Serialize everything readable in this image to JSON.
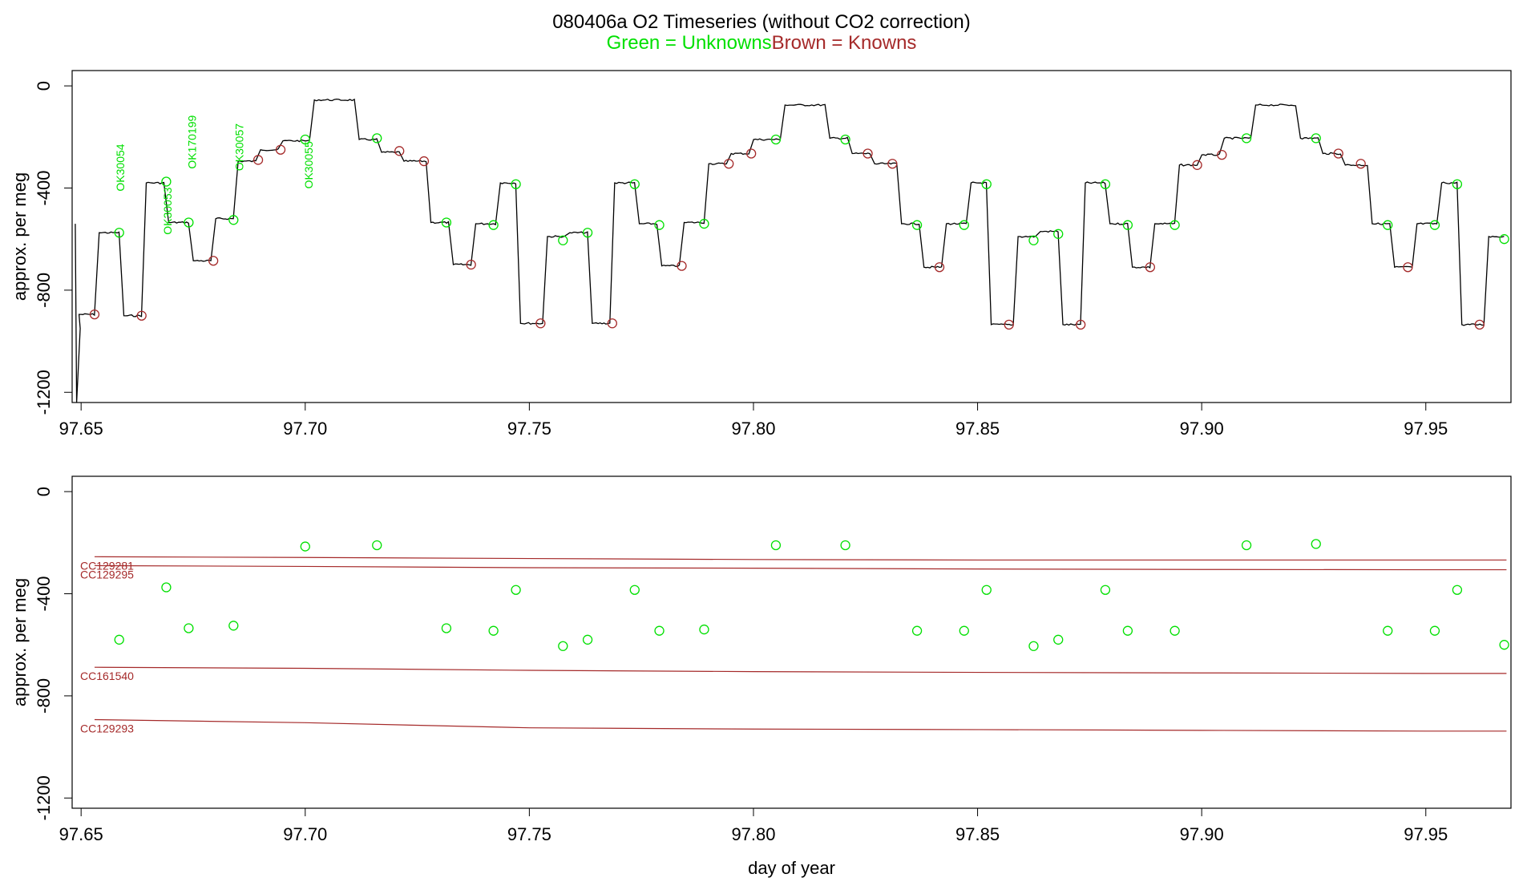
{
  "title": "080406a   O2 Timeseries (without CO2 correction)",
  "legend": {
    "unknowns": "Green = Unknowns",
    "knowns": "Brown = Knowns"
  },
  "colors": {
    "unknown": "#00e000",
    "known": "#a52a2a",
    "trace": "#000000"
  },
  "chart_data": [
    {
      "type": "line",
      "panel": "top",
      "ylabel": "approx. per meg",
      "xlabel": "",
      "xlim": [
        97.648,
        97.969
      ],
      "ylim": [
        -1240,
        60
      ],
      "x_ticks": [
        "97.65",
        "97.70",
        "97.75",
        "97.80",
        "97.85",
        "97.90",
        "97.95"
      ],
      "y_ticks": [
        "0",
        "-400",
        "-800",
        "-1200"
      ],
      "series": [
        {
          "role": "trace",
          "segments": [
            {
              "x0": 97.649,
              "x1": 97.6535,
              "y": -895
            },
            {
              "x0": 97.6535,
              "x1": 97.659,
              "y": -575
            },
            {
              "x0": 97.659,
              "x1": 97.664,
              "y": -900
            },
            {
              "x0": 97.664,
              "x1": 97.669,
              "y": -380
            },
            {
              "x0": 97.669,
              "x1": 97.6745,
              "y": -535
            },
            {
              "x0": 97.6745,
              "x1": 97.6795,
              "y": -685
            },
            {
              "x0": 97.6795,
              "x1": 97.6845,
              "y": -520
            },
            {
              "x0": 97.6845,
              "x1": 97.6895,
              "y": -295
            },
            {
              "x0": 97.6895,
              "x1": 97.6945,
              "y": -250
            },
            {
              "x0": 97.6945,
              "x1": 97.7015,
              "y": -215
            },
            {
              "x0": 97.7015,
              "x1": 97.7115,
              "y": -55
            },
            {
              "x0": 97.7115,
              "x1": 97.7165,
              "y": -210
            },
            {
              "x0": 97.7165,
              "x1": 97.7215,
              "y": -260
            },
            {
              "x0": 97.7215,
              "x1": 97.7275,
              "y": -295
            },
            {
              "x0": 97.7275,
              "x1": 97.7325,
              "y": -535
            },
            {
              "x0": 97.7325,
              "x1": 97.7375,
              "y": -700
            },
            {
              "x0": 97.7375,
              "x1": 97.743,
              "y": -540
            },
            {
              "x0": 97.743,
              "x1": 97.7475,
              "y": -380
            },
            {
              "x0": 97.7475,
              "x1": 97.7535,
              "y": -930
            },
            {
              "x0": 97.7535,
              "x1": 97.7585,
              "y": -590
            },
            {
              "x0": 97.7585,
              "x1": 97.7635,
              "y": -575
            },
            {
              "x0": 97.7635,
              "x1": 97.7685,
              "y": -930
            },
            {
              "x0": 97.7685,
              "x1": 97.774,
              "y": -380
            },
            {
              "x0": 97.774,
              "x1": 97.779,
              "y": -540
            },
            {
              "x0": 97.779,
              "x1": 97.784,
              "y": -705
            },
            {
              "x0": 97.784,
              "x1": 97.7895,
              "y": -535
            },
            {
              "x0": 97.7895,
              "x1": 97.7945,
              "y": -305
            },
            {
              "x0": 97.7945,
              "x1": 97.7995,
              "y": -265
            },
            {
              "x0": 97.7995,
              "x1": 97.8065,
              "y": -210
            },
            {
              "x0": 97.8065,
              "x1": 97.8165,
              "y": -75
            },
            {
              "x0": 97.8165,
              "x1": 97.8215,
              "y": -205
            },
            {
              "x0": 97.8215,
              "x1": 97.8265,
              "y": -265
            },
            {
              "x0": 97.8265,
              "x1": 97.8325,
              "y": -305
            },
            {
              "x0": 97.8325,
              "x1": 97.8375,
              "y": -540
            },
            {
              "x0": 97.8375,
              "x1": 97.8425,
              "y": -710
            },
            {
              "x0": 97.8425,
              "x1": 97.848,
              "y": -540
            },
            {
              "x0": 97.848,
              "x1": 97.8525,
              "y": -380
            },
            {
              "x0": 97.8525,
              "x1": 97.8585,
              "y": -935
            },
            {
              "x0": 97.8585,
              "x1": 97.8635,
              "y": -590
            },
            {
              "x0": 97.8635,
              "x1": 97.8685,
              "y": -570
            },
            {
              "x0": 97.8685,
              "x1": 97.8735,
              "y": -935
            },
            {
              "x0": 97.8735,
              "x1": 97.879,
              "y": -380
            },
            {
              "x0": 97.879,
              "x1": 97.884,
              "y": -540
            },
            {
              "x0": 97.884,
              "x1": 97.889,
              "y": -710
            },
            {
              "x0": 97.889,
              "x1": 97.8945,
              "y": -540
            },
            {
              "x0": 97.8945,
              "x1": 97.8995,
              "y": -310
            },
            {
              "x0": 97.8995,
              "x1": 97.9045,
              "y": -270
            },
            {
              "x0": 97.9045,
              "x1": 97.9115,
              "y": -205
            },
            {
              "x0": 97.9115,
              "x1": 97.9215,
              "y": -75
            },
            {
              "x0": 97.9215,
              "x1": 97.9265,
              "y": -205
            },
            {
              "x0": 97.9265,
              "x1": 97.9315,
              "y": -265
            },
            {
              "x0": 97.9315,
              "x1": 97.9375,
              "y": -310
            },
            {
              "x0": 97.9375,
              "x1": 97.9425,
              "y": -540
            },
            {
              "x0": 97.9425,
              "x1": 97.9475,
              "y": -710
            },
            {
              "x0": 97.9475,
              "x1": 97.953,
              "y": -540
            },
            {
              "x0": 97.953,
              "x1": 97.9575,
              "y": -380
            },
            {
              "x0": 97.9575,
              "x1": 97.9635,
              "y": -935
            },
            {
              "x0": 97.9635,
              "x1": 97.968,
              "y": -590
            }
          ]
        },
        {
          "role": "unknowns",
          "points": [
            {
              "x": 97.6585,
              "y": -575
            },
            {
              "x": 97.669,
              "y": -375
            },
            {
              "x": 97.674,
              "y": -535
            },
            {
              "x": 97.684,
              "y": -525
            },
            {
              "x": 97.7,
              "y": -210
            },
            {
              "x": 97.716,
              "y": -205
            },
            {
              "x": 97.7315,
              "y": -535
            },
            {
              "x": 97.742,
              "y": -545
            },
            {
              "x": 97.747,
              "y": -385
            },
            {
              "x": 97.7575,
              "y": -605
            },
            {
              "x": 97.763,
              "y": -575
            },
            {
              "x": 97.7735,
              "y": -385
            },
            {
              "x": 97.779,
              "y": -545
            },
            {
              "x": 97.789,
              "y": -540
            },
            {
              "x": 97.805,
              "y": -210
            },
            {
              "x": 97.8205,
              "y": -210
            },
            {
              "x": 97.8365,
              "y": -545
            },
            {
              "x": 97.847,
              "y": -545
            },
            {
              "x": 97.852,
              "y": -385
            },
            {
              "x": 97.8625,
              "y": -605
            },
            {
              "x": 97.868,
              "y": -580
            },
            {
              "x": 97.8785,
              "y": -385
            },
            {
              "x": 97.8835,
              "y": -545
            },
            {
              "x": 97.894,
              "y": -545
            },
            {
              "x": 97.91,
              "y": -205
            },
            {
              "x": 97.9255,
              "y": -205
            },
            {
              "x": 97.9415,
              "y": -545
            },
            {
              "x": 97.952,
              "y": -545
            },
            {
              "x": 97.957,
              "y": -385
            },
            {
              "x": 97.9675,
              "y": -600
            }
          ]
        },
        {
          "role": "knowns",
          "points": [
            {
              "x": 97.653,
              "y": -895
            },
            {
              "x": 97.6635,
              "y": -900
            },
            {
              "x": 97.6795,
              "y": -685
            },
            {
              "x": 97.6895,
              "y": -290
            },
            {
              "x": 97.6945,
              "y": -250
            },
            {
              "x": 97.721,
              "y": -255
            },
            {
              "x": 97.7265,
              "y": -295
            },
            {
              "x": 97.737,
              "y": -700
            },
            {
              "x": 97.7525,
              "y": -930
            },
            {
              "x": 97.7685,
              "y": -930
            },
            {
              "x": 97.784,
              "y": -705
            },
            {
              "x": 97.7945,
              "y": -305
            },
            {
              "x": 97.7995,
              "y": -265
            },
            {
              "x": 97.8255,
              "y": -265
            },
            {
              "x": 97.831,
              "y": -305
            },
            {
              "x": 97.8415,
              "y": -710
            },
            {
              "x": 97.857,
              "y": -935
            },
            {
              "x": 97.873,
              "y": -935
            },
            {
              "x": 97.8885,
              "y": -710
            },
            {
              "x": 97.899,
              "y": -310
            },
            {
              "x": 97.9045,
              "y": -270
            },
            {
              "x": 97.9305,
              "y": -265
            },
            {
              "x": 97.9355,
              "y": -305
            },
            {
              "x": 97.946,
              "y": -710
            },
            {
              "x": 97.962,
              "y": -935
            }
          ]
        }
      ],
      "annotations": [
        {
          "text": "OK30054",
          "x": 97.659,
          "y": -320
        },
        {
          "text": "OK30053",
          "x": 97.6695,
          "y": -490
        },
        {
          "text": "OK170199",
          "x": 97.675,
          "y": -220
        },
        {
          "text": "OK30057",
          "x": 97.6855,
          "y": -240
        },
        {
          "text": "OK30055",
          "x": 97.701,
          "y": -310
        }
      ]
    },
    {
      "type": "scatter",
      "panel": "bottom",
      "ylabel": "approx. per meg",
      "xlabel": "day of year",
      "xlim": [
        97.648,
        97.969
      ],
      "ylim": [
        -1240,
        60
      ],
      "x_ticks": [
        "97.65",
        "97.70",
        "97.75",
        "97.80",
        "97.85",
        "97.90",
        "97.95"
      ],
      "y_ticks": [
        "0",
        "-400",
        "-800",
        "-1200"
      ],
      "series": [
        {
          "role": "unknowns",
          "points": [
            {
              "x": 97.6585,
              "y": -580
            },
            {
              "x": 97.669,
              "y": -375
            },
            {
              "x": 97.674,
              "y": -535
            },
            {
              "x": 97.684,
              "y": -525
            },
            {
              "x": 97.7,
              "y": -215
            },
            {
              "x": 97.716,
              "y": -210
            },
            {
              "x": 97.7315,
              "y": -535
            },
            {
              "x": 97.742,
              "y": -545
            },
            {
              "x": 97.747,
              "y": -385
            },
            {
              "x": 97.7575,
              "y": -605
            },
            {
              "x": 97.763,
              "y": -580
            },
            {
              "x": 97.7735,
              "y": -385
            },
            {
              "x": 97.779,
              "y": -545
            },
            {
              "x": 97.789,
              "y": -540
            },
            {
              "x": 97.805,
              "y": -210
            },
            {
              "x": 97.8205,
              "y": -210
            },
            {
              "x": 97.8365,
              "y": -545
            },
            {
              "x": 97.847,
              "y": -545
            },
            {
              "x": 97.852,
              "y": -385
            },
            {
              "x": 97.8625,
              "y": -605
            },
            {
              "x": 97.868,
              "y": -580
            },
            {
              "x": 97.8785,
              "y": -385
            },
            {
              "x": 97.8835,
              "y": -545
            },
            {
              "x": 97.894,
              "y": -545
            },
            {
              "x": 97.91,
              "y": -210
            },
            {
              "x": 97.9255,
              "y": -205
            },
            {
              "x": 97.9415,
              "y": -545
            },
            {
              "x": 97.952,
              "y": -545
            },
            {
              "x": 97.957,
              "y": -385
            },
            {
              "x": 97.9675,
              "y": -600
            }
          ]
        }
      ],
      "reference_lines": [
        {
          "name": "CC129281",
          "x": [
            97.653,
            97.7,
            97.75,
            97.8,
            97.85,
            97.9,
            97.95,
            97.968
          ],
          "y": [
            -255,
            -258,
            -262,
            -266,
            -268,
            -268,
            -268,
            -268
          ]
        },
        {
          "name": "CC129295",
          "x": [
            97.653,
            97.7,
            97.75,
            97.8,
            97.85,
            97.9,
            97.95,
            97.968
          ],
          "y": [
            -290,
            -293,
            -298,
            -300,
            -303,
            -305,
            -306,
            -306
          ]
        },
        {
          "name": "CC161540",
          "x": [
            97.653,
            97.7,
            97.75,
            97.8,
            97.85,
            97.9,
            97.95,
            97.968
          ],
          "y": [
            -688,
            -692,
            -700,
            -705,
            -708,
            -710,
            -712,
            -712
          ]
        },
        {
          "name": "CC129293",
          "x": [
            97.653,
            97.7,
            97.75,
            97.8,
            97.85,
            97.9,
            97.95,
            97.968
          ],
          "y": [
            -893,
            -905,
            -925,
            -930,
            -932,
            -935,
            -938,
            -938
          ]
        }
      ]
    }
  ]
}
